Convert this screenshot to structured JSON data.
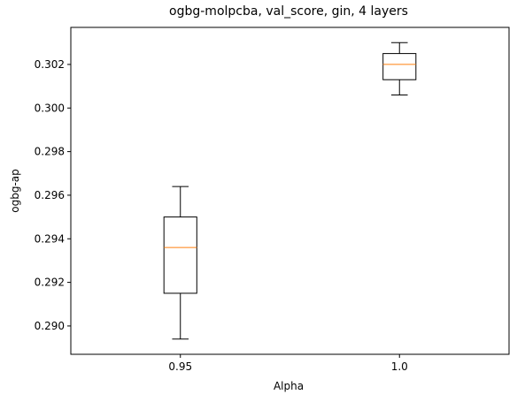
{
  "chart_data": {
    "type": "box",
    "title": "ogbg-molpcba, val_score, gin, 4 layers",
    "xlabel": "Alpha",
    "ylabel": "ogbg-ap",
    "categories": [
      "0.95",
      "1.0"
    ],
    "boxes": [
      {
        "category": "0.95",
        "whisker_low": 0.2894,
        "q1": 0.2915,
        "median": 0.2936,
        "q3": 0.295,
        "whisker_high": 0.2964
      },
      {
        "category": "1.0",
        "whisker_low": 0.3006,
        "q1": 0.3013,
        "median": 0.302,
        "q3": 0.3025,
        "whisker_high": 0.303
      }
    ],
    "ylim": [
      0.2887,
      0.3037
    ],
    "yticks": [
      "0.290",
      "0.292",
      "0.294",
      "0.296",
      "0.298",
      "0.300",
      "0.302"
    ],
    "grid": false,
    "colors": {
      "box": "#000000",
      "median": "#ff7f0e",
      "background": "#ffffff"
    }
  }
}
